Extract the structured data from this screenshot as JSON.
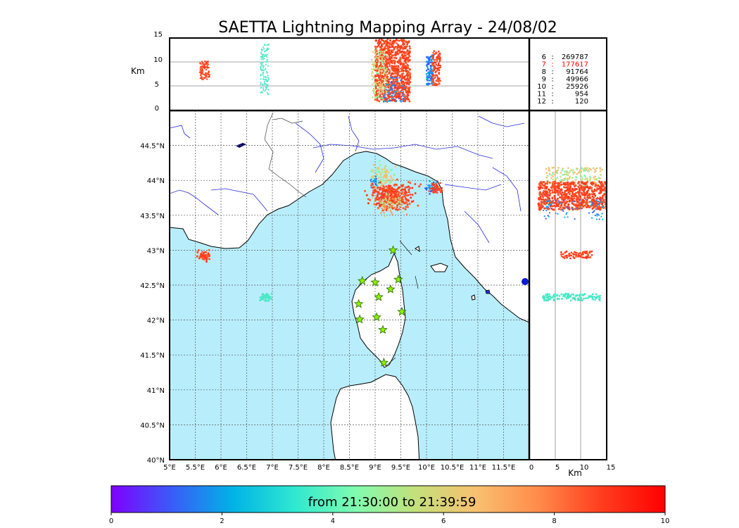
{
  "title": "SAETTA Lightning Mapping Array - 24/08/02",
  "colors": {
    "sea": "#b8eefc",
    "land": "#ffffff",
    "river": "#2a2ae0",
    "border": "#444444",
    "grid": "#555555",
    "station_fill": "#8cf000",
    "station_stroke": "#2b6b00",
    "highlight": "#ff0000",
    "colormap": [
      "#7f00ff",
      "#3a5cf8",
      "#00b3e6",
      "#2ee8d0",
      "#7ffcb0",
      "#c4e07a",
      "#f8c070",
      "#ff8c4a",
      "#ff4020",
      "#ff0000"
    ]
  },
  "top_panel": {
    "ylabel": "Km",
    "yticks": [
      "0",
      "5",
      "10",
      "15"
    ],
    "hlines_km": [
      5,
      10
    ]
  },
  "map_panel": {
    "lon_ticks": [
      "5°E",
      "5.5°E",
      "6°E",
      "6.5°E",
      "7°E",
      "7.5°E",
      "8°E",
      "8.5°E",
      "9°E",
      "9.5°E",
      "10°E",
      "10.5°E",
      "11°E",
      "11.5°E"
    ],
    "lat_ticks": [
      "40°N",
      "40.5°N",
      "41°N",
      "41.5°N",
      "42°N",
      "42.5°N",
      "43°N",
      "43.5°N",
      "44°N",
      "44.5°N"
    ],
    "stations": [
      {
        "lon": 9.35,
        "lat": 43.0
      },
      {
        "lon": 8.75,
        "lat": 42.56
      },
      {
        "lon": 9.0,
        "lat": 42.54
      },
      {
        "lon": 9.45,
        "lat": 42.58
      },
      {
        "lon": 9.3,
        "lat": 42.44
      },
      {
        "lon": 9.07,
        "lat": 42.33
      },
      {
        "lon": 8.68,
        "lat": 42.23
      },
      {
        "lon": 9.52,
        "lat": 42.12
      },
      {
        "lon": 8.7,
        "lat": 42.01
      },
      {
        "lon": 9.03,
        "lat": 42.04
      },
      {
        "lon": 9.15,
        "lat": 41.86
      },
      {
        "lon": 9.17,
        "lat": 41.39
      }
    ]
  },
  "side_panel": {
    "xlabel": "Km",
    "xticks": [
      "0",
      "5",
      "10",
      "15"
    ],
    "vlines_km": [
      5,
      10
    ]
  },
  "counts": [
    {
      "label": "6",
      "value": "269787",
      "highlight": false
    },
    {
      "label": "7",
      "value": "177617",
      "highlight": true
    },
    {
      "label": "8",
      "value": "91764",
      "highlight": false
    },
    {
      "label": "9",
      "value": "49966",
      "highlight": false
    },
    {
      "label": "10",
      "value": "25926",
      "highlight": false
    },
    {
      "label": "11",
      "value": "954",
      "highlight": false
    },
    {
      "label": "12",
      "value": "120",
      "highlight": false
    }
  ],
  "colorbar": {
    "text": "from 21:30:00 to 21:39:59",
    "ticks": [
      "0",
      "2",
      "4",
      "6",
      "8",
      "10"
    ]
  }
}
